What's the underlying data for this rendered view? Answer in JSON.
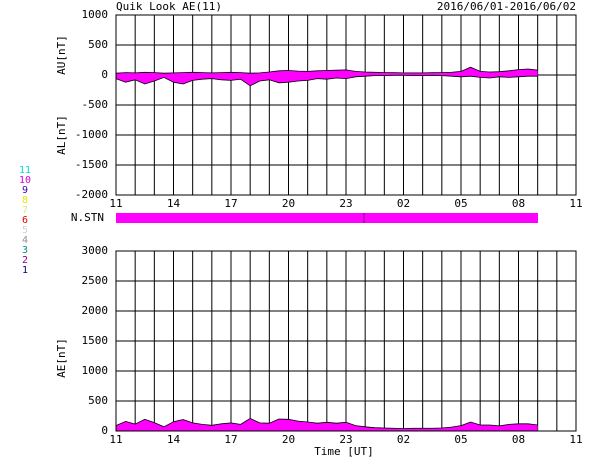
{
  "header": {
    "title": "Quik Look AE(11)",
    "date_range": "2016/06/01-2016/06/02",
    "station_label": "N.STN"
  },
  "station_numbers": [
    {
      "label": "11",
      "color": "#00d8d8"
    },
    {
      "label": "10",
      "color": "#e000e0"
    },
    {
      "label": "9",
      "color": "#4000c0"
    },
    {
      "label": "8",
      "color": "#e8e800"
    },
    {
      "label": "7",
      "color": "#d8e880"
    },
    {
      "label": "6",
      "color": "#e00000"
    },
    {
      "label": "5",
      "color": "#d0d0d0"
    },
    {
      "label": "4",
      "color": "#909090"
    },
    {
      "label": "3",
      "color": "#009090"
    },
    {
      "label": "2",
      "color": "#900090"
    },
    {
      "label": "1",
      "color": "#000080"
    }
  ],
  "chart_data": [
    {
      "type": "area",
      "y_labels": [
        "AU[nT]",
        "AL[nT]"
      ],
      "color": "#ff00ff",
      "x": [
        11,
        11.5,
        12,
        12.5,
        13,
        13.5,
        14,
        14.5,
        15,
        15.5,
        16,
        16.5,
        17,
        17.5,
        18,
        18.5,
        19,
        19.5,
        20,
        20.5,
        21,
        21.5,
        22,
        22.5,
        23,
        23.5,
        24,
        24.5,
        25,
        25.5,
        26,
        26.5,
        27,
        27.5,
        28,
        28.5,
        29,
        29.5,
        30,
        30.5,
        31,
        31.5,
        32,
        32.5,
        33
      ],
      "series": [
        {
          "name": "AU",
          "color": "#ff00ff",
          "values": [
            30,
            40,
            35,
            45,
            40,
            30,
            35,
            40,
            45,
            40,
            35,
            40,
            45,
            40,
            30,
            35,
            50,
            70,
            75,
            65,
            60,
            70,
            75,
            80,
            85,
            60,
            50,
            45,
            40,
            40,
            35,
            35,
            35,
            40,
            40,
            45,
            60,
            130,
            60,
            50,
            55,
            70,
            90,
            100,
            80
          ]
        },
        {
          "name": "AL",
          "color": "#ff00ff",
          "values": [
            -60,
            -120,
            -80,
            -150,
            -100,
            -40,
            -120,
            -150,
            -90,
            -70,
            -60,
            -80,
            -90,
            -70,
            -180,
            -100,
            -80,
            -130,
            -120,
            -100,
            -90,
            -60,
            -70,
            -50,
            -60,
            -30,
            -20,
            -10,
            -10,
            -5,
            -5,
            -10,
            -10,
            -5,
            -10,
            -20,
            -30,
            -20,
            -40,
            -50,
            -30,
            -40,
            -30,
            -20,
            -20
          ]
        }
      ],
      "xlim": [
        11,
        35
      ],
      "xticks": [
        {
          "value": 11,
          "label": "11"
        },
        14,
        17,
        20,
        23,
        {
          "value": 26,
          "label": "02"
        },
        {
          "value": 29,
          "label": "05"
        },
        {
          "value": 32,
          "label": "08"
        },
        {
          "value": 35,
          "label": "11"
        }
      ],
      "ylim": [
        -2000,
        1000
      ],
      "yticks": [
        1000,
        500,
        0,
        -500,
        -1000,
        -1500,
        -2000
      ],
      "grid": true
    },
    {
      "type": "area",
      "y_labels": [
        "AE[nT]"
      ],
      "x_label": "Time [UT]",
      "color": "#ff00ff",
      "x": [
        11,
        11.5,
        12,
        12.5,
        13,
        13.5,
        14,
        14.5,
        15,
        15.5,
        16,
        16.5,
        17,
        17.5,
        18,
        18.5,
        19,
        19.5,
        20,
        20.5,
        21,
        21.5,
        22,
        22.5,
        23,
        23.5,
        24,
        24.5,
        25,
        25.5,
        26,
        26.5,
        27,
        27.5,
        28,
        28.5,
        29,
        29.5,
        30,
        30.5,
        31,
        31.5,
        32,
        32.5,
        33
      ],
      "series": [
        {
          "name": "AE",
          "color": "#ff00ff",
          "values": [
            90,
            160,
            115,
            195,
            140,
            70,
            155,
            190,
            135,
            110,
            95,
            120,
            135,
            110,
            210,
            135,
            130,
            200,
            195,
            165,
            150,
            130,
            145,
            130,
            145,
            90,
            70,
            55,
            50,
            45,
            40,
            45,
            45,
            45,
            50,
            65,
            90,
            150,
            100,
            100,
            85,
            110,
            120,
            120,
            100
          ]
        }
      ],
      "xlim": [
        11,
        35
      ],
      "xticks": [
        {
          "value": 11,
          "label": "11"
        },
        14,
        17,
        20,
        23,
        {
          "value": 26,
          "label": "02"
        },
        {
          "value": 29,
          "label": "05"
        },
        {
          "value": 32,
          "label": "08"
        },
        {
          "value": 35,
          "label": "11"
        }
      ],
      "ylim": [
        0,
        3000
      ],
      "yticks": [
        0,
        500,
        1000,
        1500,
        2000,
        2500,
        3000
      ],
      "grid": true
    }
  ]
}
